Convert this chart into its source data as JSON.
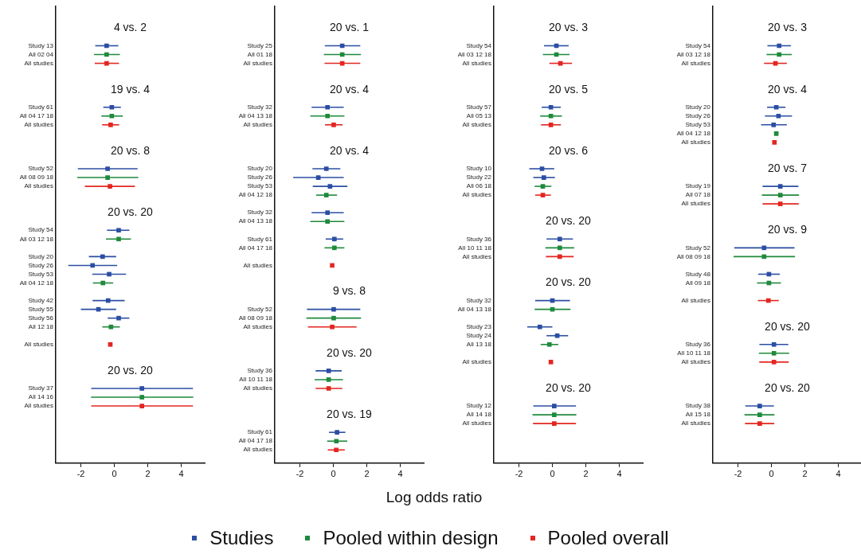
{
  "chart_data": [
    {
      "type": "scatter",
      "orientation": "horizontal",
      "marker": "square",
      "legend": "bottom",
      "xlim": [
        -3.5,
        5.4
      ],
      "xticks": [
        -2,
        0,
        2,
        4
      ],
      "annotations": [
        "4 vs. 2",
        "19 vs. 4",
        "20 vs. 8",
        "20 vs. 20",
        "20 vs. 20"
      ],
      "categories": [
        null,
        null,
        null,
        null,
        "Study 13",
        "All 02 04",
        "All studies",
        null,
        null,
        null,
        null,
        "Study 61",
        "All 04 17 18",
        "All studies",
        null,
        null,
        null,
        null,
        "Study 52",
        "All 08 09 18",
        "All studies",
        null,
        null,
        null,
        null,
        "Study 54",
        "All 03 12 18",
        null,
        "Study 20",
        "Study 26",
        "Study 53",
        "All 04 12 18",
        null,
        "Study 42",
        "Study 55",
        "Study 56",
        "All 12 18",
        null,
        "All studies",
        null,
        null,
        null,
        null,
        "Study 37",
        "All 14 16",
        "All studies",
        null,
        null,
        null,
        null,
        null,
        null
      ],
      "series": [
        {
          "name": "Studies",
          "color": "#2b4ea3",
          "values": [
            null,
            null,
            null,
            null,
            -0.46,
            null,
            null,
            null,
            null,
            null,
            null,
            -0.15,
            null,
            null,
            null,
            null,
            null,
            null,
            -0.4,
            null,
            null,
            null,
            null,
            null,
            null,
            0.26,
            null,
            null,
            -0.7,
            -1.3,
            -0.31,
            null,
            null,
            -0.37,
            -0.95,
            0.26,
            null,
            null,
            null,
            null,
            null,
            null,
            null,
            1.65,
            null,
            null,
            null,
            null,
            null,
            null,
            null,
            null
          ],
          "errors": [
            null,
            null,
            null,
            null,
            [
              -1.14,
              0.24
            ],
            null,
            null,
            null,
            null,
            null,
            null,
            [
              -0.66,
              0.39
            ],
            null,
            null,
            null,
            null,
            null,
            null,
            [
              -2.18,
              1.39
            ],
            null,
            null,
            null,
            null,
            null,
            null,
            [
              -0.44,
              0.9
            ],
            null,
            null,
            [
              -1.52,
              0.11
            ],
            [
              -2.75,
              0.17
            ],
            [
              -1.32,
              0.7
            ],
            null,
            null,
            [
              -1.3,
              0.62
            ],
            [
              -2.0,
              0.11
            ],
            [
              -0.4,
              0.9
            ],
            null,
            null,
            null,
            null,
            null,
            null,
            null,
            [
              -1.38,
              4.7
            ],
            null,
            null,
            null,
            null,
            null,
            null,
            null,
            null
          ]
        },
        {
          "name": "Pooled within design",
          "color": "#1f8a3c",
          "values": [
            null,
            null,
            null,
            null,
            null,
            -0.46,
            null,
            null,
            null,
            null,
            null,
            null,
            -0.15,
            null,
            null,
            null,
            null,
            null,
            null,
            -0.4,
            null,
            null,
            null,
            null,
            null,
            null,
            0.26,
            null,
            null,
            null,
            null,
            -0.68,
            null,
            null,
            null,
            null,
            -0.2,
            null,
            null,
            null,
            null,
            null,
            null,
            null,
            1.65,
            null,
            null,
            null,
            null,
            null,
            null,
            null
          ],
          "errors": [
            null,
            null,
            null,
            null,
            null,
            [
              -1.21,
              0.33
            ],
            null,
            null,
            null,
            null,
            null,
            null,
            [
              -0.77,
              0.51
            ],
            null,
            null,
            null,
            null,
            null,
            null,
            [
              -2.22,
              1.43
            ],
            null,
            null,
            null,
            null,
            null,
            null,
            [
              -0.5,
              0.99
            ],
            null,
            null,
            null,
            null,
            [
              -1.28,
              -0.07
            ],
            null,
            null,
            null,
            null,
            [
              -0.72,
              0.33
            ],
            null,
            null,
            null,
            null,
            null,
            null,
            null,
            [
              -1.39,
              4.72
            ],
            null,
            null,
            null,
            null,
            null,
            null,
            null
          ]
        },
        {
          "name": "Pooled overall",
          "color": "#e32620",
          "values": [
            null,
            null,
            null,
            null,
            null,
            null,
            -0.46,
            null,
            null,
            null,
            null,
            null,
            null,
            -0.22,
            null,
            null,
            null,
            null,
            null,
            null,
            -0.26,
            null,
            null,
            null,
            null,
            null,
            null,
            null,
            null,
            null,
            null,
            null,
            null,
            null,
            null,
            null,
            null,
            null,
            -0.24,
            null,
            null,
            null,
            null,
            null,
            null,
            1.65,
            null,
            null,
            null,
            null,
            null,
            null
          ],
          "errors": [
            null,
            null,
            null,
            null,
            null,
            null,
            [
              -1.17,
              0.28
            ],
            null,
            null,
            null,
            null,
            null,
            null,
            [
              -0.73,
              0.29
            ],
            null,
            null,
            null,
            null,
            null,
            null,
            [
              -1.76,
              1.23
            ],
            null,
            null,
            null,
            null,
            null,
            null,
            null,
            null,
            null,
            null,
            null,
            null,
            null,
            null,
            null,
            null,
            null,
            null,
            null,
            null,
            null,
            null,
            null,
            null,
            [
              -1.38,
              4.7
            ],
            null,
            null,
            null,
            null,
            null,
            null
          ]
        }
      ]
    },
    {
      "type": "scatter",
      "orientation": "horizontal",
      "marker": "square",
      "xlabel": "Log odds ratio",
      "xlim": [
        -3.5,
        5.4
      ],
      "xticks": [
        -2,
        0,
        2,
        4
      ],
      "annotations": [
        "20 vs. 1",
        "20 vs. 4",
        "20 vs. 4",
        "9 vs. 8",
        "20 vs. 20",
        "20 vs. 19"
      ],
      "categories": [
        null,
        null,
        null,
        null,
        "Study 25",
        "All 01 18",
        "All studies",
        null,
        null,
        null,
        null,
        "Study 32",
        "All 04 13 18",
        "All studies",
        null,
        null,
        null,
        null,
        "Study 20",
        "Study 26",
        "Study 53",
        "All 04 12 18",
        null,
        "Study 32",
        "All 04 13 18",
        null,
        "Study 61",
        "All 04 17 18",
        null,
        "All studies",
        null,
        null,
        null,
        null,
        "Study 52",
        "All 08 09 18",
        "All studies",
        null,
        null,
        null,
        null,
        "Study 36",
        "All 10 11 18",
        "All studies",
        null,
        null,
        null,
        null,
        "Study 61",
        "All 04 17 18",
        "All studies",
        null
      ],
      "series": [
        {
          "color": "#2b4ea3",
          "values": [
            null,
            null,
            null,
            null,
            0.53,
            null,
            null,
            null,
            null,
            null,
            null,
            -0.35,
            null,
            null,
            null,
            null,
            null,
            null,
            -0.42,
            -0.9,
            -0.2,
            null,
            null,
            -0.35,
            null,
            null,
            0.06,
            null,
            null,
            null,
            null,
            null,
            null,
            null,
            0.02,
            null,
            null,
            null,
            null,
            null,
            null,
            -0.28,
            null,
            null,
            null,
            null,
            null,
            null,
            0.22,
            null,
            null,
            null
          ],
          "errors": [
            null,
            null,
            null,
            null,
            [
              -0.51,
              1.61
            ],
            null,
            null,
            null,
            null,
            null,
            null,
            [
              -1.3,
              0.62
            ],
            null,
            null,
            null,
            null,
            null,
            null,
            [
              -1.25,
              0.42
            ],
            [
              -2.4,
              0.62
            ],
            [
              -1.23,
              0.84
            ],
            null,
            null,
            [
              -1.3,
              0.62
            ],
            null,
            null,
            [
              -0.46,
              0.59
            ],
            null,
            null,
            null,
            null,
            null,
            null,
            null,
            [
              -1.58,
              1.61
            ],
            null,
            null,
            null,
            null,
            null,
            null,
            [
              -1.06,
              0.5
            ],
            null,
            null,
            null,
            null,
            null,
            null,
            [
              -0.26,
              0.72
            ],
            null,
            null,
            null
          ]
        },
        {
          "color": "#1f8a3c",
          "values": [
            null,
            null,
            null,
            null,
            null,
            0.53,
            null,
            null,
            null,
            null,
            null,
            null,
            -0.35,
            null,
            null,
            null,
            null,
            null,
            null,
            null,
            null,
            -0.42,
            null,
            null,
            -0.35,
            null,
            null,
            0.06,
            null,
            null,
            null,
            null,
            null,
            null,
            null,
            0.02,
            null,
            null,
            null,
            null,
            null,
            null,
            -0.28,
            null,
            null,
            null,
            null,
            null,
            null,
            0.18,
            null,
            null
          ],
          "errors": [
            null,
            null,
            null,
            null,
            null,
            [
              -0.57,
              1.65
            ],
            null,
            null,
            null,
            null,
            null,
            null,
            [
              -1.38,
              0.66
            ],
            null,
            null,
            null,
            null,
            null,
            null,
            null,
            null,
            [
              -1.03,
              0.22
            ],
            null,
            null,
            [
              -1.38,
              0.66
            ],
            null,
            null,
            [
              -0.53,
              0.66
            ],
            null,
            null,
            null,
            null,
            null,
            null,
            null,
            [
              -1.61,
              1.65
            ],
            null,
            null,
            null,
            null,
            null,
            null,
            [
              -1.12,
              0.57
            ],
            null,
            null,
            null,
            null,
            null,
            null,
            [
              -0.37,
              0.83
            ],
            null,
            null
          ]
        },
        {
          "color": "#e32620",
          "values": [
            null,
            null,
            null,
            null,
            null,
            null,
            0.53,
            null,
            null,
            null,
            null,
            null,
            null,
            0.02,
            null,
            null,
            null,
            null,
            null,
            null,
            null,
            null,
            null,
            null,
            null,
            null,
            null,
            null,
            null,
            -0.07,
            null,
            null,
            null,
            null,
            null,
            null,
            -0.07,
            null,
            null,
            null,
            null,
            null,
            null,
            -0.28,
            null,
            null,
            null,
            null,
            null,
            null,
            0.17,
            null
          ],
          "errors": [
            null,
            null,
            null,
            null,
            null,
            null,
            [
              -0.53,
              1.61
            ],
            null,
            null,
            null,
            null,
            null,
            null,
            [
              -0.5,
              0.55
            ],
            null,
            null,
            null,
            null,
            null,
            null,
            null,
            null,
            null,
            null,
            null,
            null,
            null,
            null,
            null,
            null,
            null,
            null,
            null,
            null,
            null,
            null,
            [
              -1.52,
              1.39
            ],
            null,
            null,
            null,
            null,
            null,
            null,
            [
              -1.06,
              0.53
            ],
            null,
            null,
            null,
            null,
            null,
            null,
            [
              -0.33,
              0.68
            ],
            null
          ]
        }
      ]
    },
    {
      "type": "scatter",
      "orientation": "horizontal",
      "marker": "square",
      "xlim": [
        -3.5,
        5.4
      ],
      "xticks": [
        -2,
        0,
        2,
        4
      ],
      "annotations": [
        "20 vs. 3",
        "20 vs. 5",
        "20 vs. 6",
        "20 vs. 20",
        "20 vs. 20",
        "20 vs. 20"
      ],
      "categories": [
        null,
        null,
        null,
        null,
        "Study 54",
        "All 03 12 18",
        "All studies",
        null,
        null,
        null,
        null,
        "Study 57",
        "All 05 13",
        "All studies",
        null,
        null,
        null,
        null,
        "Study 10",
        "Study 22",
        "All 06 18",
        "All studies",
        null,
        null,
        null,
        null,
        "Study 36",
        "All 10 11 18",
        "All studies",
        null,
        null,
        null,
        null,
        "Study 32",
        "All 04 13 18",
        null,
        "Study 23",
        "Study 24",
        "All 13 18",
        null,
        "All studies",
        null,
        null,
        null,
        null,
        "Study 12",
        "All 14 18",
        "All studies",
        null,
        null,
        null,
        null
      ],
      "series": [
        {
          "color": "#2b4ea3",
          "values": [
            null,
            null,
            null,
            null,
            0.24,
            null,
            null,
            null,
            null,
            null,
            null,
            -0.09,
            null,
            null,
            null,
            null,
            null,
            null,
            -0.62,
            -0.51,
            null,
            null,
            null,
            null,
            null,
            null,
            0.44,
            null,
            null,
            null,
            null,
            null,
            null,
            0,
            null,
            null,
            -0.75,
            0.29,
            null,
            null,
            null,
            null,
            null,
            null,
            null,
            0.11,
            null,
            null,
            null,
            null,
            null,
            null
          ],
          "errors": [
            null,
            null,
            null,
            null,
            [
              -0.5,
              0.97
            ],
            null,
            null,
            null,
            null,
            null,
            null,
            [
              -0.64,
              0.5
            ],
            null,
            null,
            null,
            null,
            null,
            null,
            [
              -1.38,
              0.11
            ],
            [
              -1.14,
              0.15
            ],
            null,
            null,
            null,
            null,
            null,
            null,
            [
              -0.35,
              1.23
            ],
            null,
            null,
            null,
            null,
            null,
            null,
            [
              -1.03,
              1.05
            ],
            null,
            null,
            [
              -1.5,
              0
            ],
            [
              -0.35,
              0.94
            ],
            null,
            null,
            null,
            null,
            null,
            null,
            null,
            [
              -1.14,
              1.41
            ],
            null,
            null,
            null,
            null,
            null,
            null
          ]
        },
        {
          "color": "#1f8a3c",
          "values": [
            null,
            null,
            null,
            null,
            null,
            0.24,
            null,
            null,
            null,
            null,
            null,
            null,
            -0.09,
            null,
            null,
            null,
            null,
            null,
            null,
            null,
            -0.57,
            null,
            null,
            null,
            null,
            null,
            null,
            0.44,
            null,
            null,
            null,
            null,
            null,
            null,
            0,
            null,
            null,
            null,
            -0.18,
            null,
            null,
            null,
            null,
            null,
            null,
            null,
            0.11,
            null,
            null,
            null,
            null,
            null
          ],
          "errors": [
            null,
            null,
            null,
            null,
            null,
            [
              -0.57,
              1.03
            ],
            null,
            null,
            null,
            null,
            null,
            null,
            [
              -0.73,
              0.57
            ],
            null,
            null,
            null,
            null,
            null,
            null,
            null,
            [
              -1.06,
              -0.06
            ],
            null,
            null,
            null,
            null,
            null,
            null,
            [
              -0.42,
              1.3
            ],
            null,
            null,
            null,
            null,
            null,
            null,
            [
              -1.06,
              1.08
            ],
            null,
            null,
            null,
            [
              -0.7,
              0.35
            ],
            null,
            null,
            null,
            null,
            null,
            null,
            null,
            [
              -1.19,
              1.43
            ],
            null,
            null,
            null,
            null,
            null
          ]
        },
        {
          "color": "#e32620",
          "values": [
            null,
            null,
            null,
            null,
            null,
            null,
            0.48,
            null,
            null,
            null,
            null,
            null,
            null,
            -0.09,
            null,
            null,
            null,
            null,
            null,
            null,
            null,
            -0.57,
            null,
            null,
            null,
            null,
            null,
            null,
            0.44,
            null,
            null,
            null,
            null,
            null,
            null,
            null,
            null,
            null,
            null,
            null,
            -0.09,
            null,
            null,
            null,
            null,
            null,
            null,
            0.11,
            null,
            null,
            null,
            null
          ],
          "errors": [
            null,
            null,
            null,
            null,
            null,
            null,
            [
              -0.18,
              1.17
            ],
            null,
            null,
            null,
            null,
            null,
            null,
            [
              -0.68,
              0.51
            ],
            null,
            null,
            null,
            null,
            null,
            null,
            null,
            [
              -1.03,
              -0.09
            ],
            null,
            null,
            null,
            null,
            null,
            null,
            [
              -0.39,
              1.27
            ],
            null,
            null,
            null,
            null,
            null,
            null,
            null,
            null,
            null,
            null,
            null,
            null,
            null,
            null,
            null,
            null,
            null,
            null,
            [
              -1.16,
              1.41
            ],
            null,
            null,
            null,
            null
          ]
        }
      ]
    },
    {
      "type": "scatter",
      "orientation": "horizontal",
      "marker": "square",
      "xlim": [
        -3.5,
        5.4
      ],
      "xticks": [
        -2,
        0,
        2,
        4
      ],
      "annotations": [
        "20 vs. 3",
        "20 vs. 4",
        "20 vs. 7",
        "20 vs. 9",
        "20 vs. 20",
        "20 vs. 20"
      ],
      "categories": [
        null,
        null,
        null,
        null,
        "Study 54",
        "All 03 12 18",
        "All studies",
        null,
        null,
        null,
        null,
        "Study 20",
        "Study 26",
        "Study 53",
        "All 04 12 18",
        "All studies",
        null,
        null,
        null,
        null,
        "Study 19",
        "All 07 18",
        "All studies",
        null,
        null,
        null,
        null,
        "Study 52",
        "All 08 09 18",
        null,
        "Study 48",
        "All 09 18",
        null,
        "All studies",
        null,
        null,
        null,
        null,
        "Study 36",
        "All 10 11 18",
        "All studies",
        null,
        null,
        null,
        null,
        "Study 38",
        "All 15 18",
        "All studies",
        null,
        null,
        null,
        null
      ],
      "series": [
        {
          "color": "#2b4ea3",
          "values": [
            null,
            null,
            null,
            null,
            0.46,
            null,
            null,
            null,
            null,
            null,
            null,
            0.29,
            0.42,
            0.13,
            null,
            null,
            null,
            null,
            null,
            null,
            0.53,
            null,
            null,
            null,
            null,
            null,
            null,
            -0.44,
            null,
            null,
            -0.15,
            null,
            null,
            null,
            null,
            null,
            null,
            null,
            0.15,
            null,
            null,
            null,
            null,
            null,
            null,
            -0.7,
            null,
            null,
            null,
            null,
            null,
            null
          ],
          "errors": [
            null,
            null,
            null,
            null,
            [
              -0.24,
              1.16
            ],
            null,
            null,
            null,
            null,
            null,
            null,
            [
              -0.26,
              0.84
            ],
            [
              -0.39,
              1.23
            ],
            [
              -0.62,
              0.92
            ],
            null,
            null,
            null,
            null,
            null,
            null,
            [
              -0.53,
              1.61
            ],
            null,
            null,
            null,
            null,
            null,
            null,
            [
              -2.22,
              1.38
            ],
            null,
            null,
            [
              -0.79,
              0.5
            ],
            null,
            null,
            null,
            null,
            null,
            null,
            null,
            [
              -0.72,
              1.01
            ],
            null,
            null,
            null,
            null,
            null,
            null,
            [
              -1.56,
              0.15
            ],
            null,
            null,
            null,
            null,
            null,
            null
          ]
        },
        {
          "color": "#1f8a3c",
          "values": [
            null,
            null,
            null,
            null,
            null,
            0.46,
            null,
            null,
            null,
            null,
            null,
            null,
            null,
            null,
            0.29,
            null,
            null,
            null,
            null,
            null,
            null,
            0.53,
            null,
            null,
            null,
            null,
            null,
            null,
            -0.44,
            null,
            null,
            -0.15,
            null,
            null,
            null,
            null,
            null,
            null,
            null,
            0.15,
            null,
            null,
            null,
            null,
            null,
            null,
            -0.7,
            null,
            null,
            null,
            null,
            null
          ],
          "errors": [
            null,
            null,
            null,
            null,
            null,
            [
              -0.29,
              1.21
            ],
            null,
            null,
            null,
            null,
            null,
            null,
            null,
            null,
            null,
            null,
            null,
            null,
            null,
            null,
            null,
            [
              -0.57,
              1.65
            ],
            null,
            null,
            null,
            null,
            null,
            null,
            [
              -2.26,
              1.41
            ],
            null,
            null,
            [
              -0.86,
              0.57
            ],
            null,
            null,
            null,
            null,
            null,
            null,
            null,
            [
              -0.75,
              1.06
            ],
            null,
            null,
            null,
            null,
            null,
            null,
            [
              -1.61,
              0.18
            ],
            null,
            null,
            null,
            null,
            null
          ]
        },
        {
          "color": "#e32620",
          "values": [
            null,
            null,
            null,
            null,
            null,
            null,
            0.24,
            null,
            null,
            null,
            null,
            null,
            null,
            null,
            null,
            0.18,
            null,
            null,
            null,
            null,
            null,
            null,
            0.53,
            null,
            null,
            null,
            null,
            null,
            null,
            null,
            null,
            null,
            null,
            -0.18,
            null,
            null,
            null,
            null,
            null,
            null,
            0.15,
            null,
            null,
            null,
            null,
            null,
            null,
            -0.7,
            null,
            null,
            null,
            null
          ],
          "errors": [
            null,
            null,
            null,
            null,
            null,
            null,
            [
              -0.44,
              0.92
            ],
            null,
            null,
            null,
            null,
            null,
            null,
            null,
            null,
            null,
            null,
            null,
            null,
            null,
            null,
            null,
            [
              -0.53,
              1.63
            ],
            null,
            null,
            null,
            null,
            null,
            null,
            null,
            null,
            null,
            null,
            [
              -0.81,
              0.44
            ],
            null,
            null,
            null,
            null,
            null,
            null,
            [
              -0.73,
              1.03
            ],
            null,
            null,
            null,
            null,
            null,
            null,
            [
              -1.58,
              0.17
            ],
            null,
            null,
            null,
            null
          ]
        }
      ]
    }
  ]
}
